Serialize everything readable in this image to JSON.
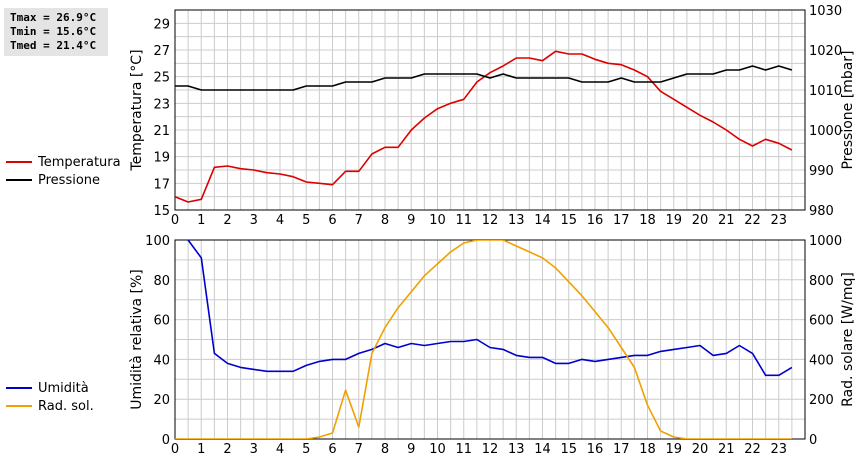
{
  "stats": {
    "tmax": "Tmax = 26.9°C",
    "tmin": "Tmin = 15.6°C",
    "tmed": "Tmed = 21.4°C"
  },
  "colors": {
    "temperature": "#dd0000",
    "pressure": "#000000",
    "humidity": "#0000cc",
    "radiation": "#f0a000",
    "grid": "#cccccc"
  },
  "chart_data": [
    {
      "type": "line",
      "x_ticks": [
        0,
        1,
        2,
        3,
        4,
        5,
        6,
        7,
        8,
        9,
        10,
        11,
        12,
        13,
        14,
        15,
        16,
        17,
        18,
        19,
        20,
        21,
        22,
        23
      ],
      "xlim": [
        0,
        24
      ],
      "y_left": {
        "label": "Temperatura [°C]",
        "lim": [
          15,
          30
        ],
        "ticks": [
          15,
          17,
          19,
          21,
          23,
          25,
          27,
          29
        ]
      },
      "y_right": {
        "label": "Pressione [mbar]",
        "lim": [
          980,
          1030
        ],
        "ticks": [
          980,
          990,
          1000,
          1010,
          1020,
          1030
        ]
      },
      "grid": true,
      "legend": {
        "placement": "left",
        "entries": [
          "Temperatura",
          "Pressione"
        ]
      },
      "series": [
        {
          "name": "Temperatura",
          "axis": "left",
          "color": "#dd0000",
          "x": [
            0,
            0.5,
            1,
            1.5,
            2,
            2.5,
            3,
            3.5,
            4,
            4.5,
            5,
            5.5,
            6,
            6.5,
            7,
            7.5,
            8,
            8.5,
            9,
            9.5,
            10,
            10.5,
            11,
            11.5,
            12,
            12.5,
            13,
            13.5,
            14,
            14.5,
            15,
            15.5,
            16,
            16.5,
            17,
            17.5,
            18,
            18.5,
            19,
            19.5,
            20,
            20.5,
            21,
            21.5,
            22,
            22.5,
            23,
            23.5
          ],
          "values": [
            16.0,
            15.6,
            15.8,
            18.2,
            18.3,
            18.1,
            18.0,
            17.8,
            17.7,
            17.5,
            17.1,
            17.0,
            16.9,
            17.9,
            17.9,
            19.2,
            19.7,
            19.7,
            21.0,
            21.9,
            22.6,
            23.0,
            23.3,
            24.6,
            25.3,
            25.8,
            26.4,
            26.4,
            26.2,
            26.9,
            26.7,
            26.7,
            26.3,
            26.0,
            25.9,
            25.5,
            25.0,
            23.9,
            23.3,
            22.7,
            22.1,
            21.6,
            21.0,
            20.3,
            19.8,
            20.3,
            20.0,
            19.5
          ]
        },
        {
          "name": "Pressione",
          "axis": "right",
          "color": "#000000",
          "x": [
            0,
            0.5,
            1,
            1.5,
            2,
            2.5,
            3,
            3.5,
            4,
            4.5,
            5,
            5.5,
            6,
            6.5,
            7,
            7.5,
            8,
            8.5,
            9,
            9.5,
            10,
            10.5,
            11,
            11.5,
            12,
            12.5,
            13,
            13.5,
            14,
            14.5,
            15,
            15.5,
            16,
            16.5,
            17,
            17.5,
            18,
            18.5,
            19,
            19.5,
            20,
            20.5,
            21,
            21.5,
            22,
            22.5,
            23,
            23.5
          ],
          "values": [
            1011,
            1011,
            1010,
            1010,
            1010,
            1010,
            1010,
            1010,
            1010,
            1010,
            1011,
            1011,
            1011,
            1012,
            1012,
            1012,
            1013,
            1013,
            1013,
            1014,
            1014,
            1014,
            1014,
            1014,
            1013,
            1014,
            1013,
            1013,
            1013,
            1013,
            1013,
            1012,
            1012,
            1012,
            1013,
            1012,
            1012,
            1012,
            1013,
            1014,
            1014,
            1014,
            1015,
            1015,
            1016,
            1015,
            1016,
            1015
          ]
        }
      ]
    },
    {
      "type": "line",
      "x_ticks": [
        0,
        1,
        2,
        3,
        4,
        5,
        6,
        7,
        8,
        9,
        10,
        11,
        12,
        13,
        14,
        15,
        16,
        17,
        18,
        19,
        20,
        21,
        22,
        23
      ],
      "xlim": [
        0,
        24
      ],
      "y_left": {
        "label": "Umidità relativa [%]",
        "lim": [
          0,
          100
        ],
        "ticks": [
          0,
          20,
          40,
          60,
          80,
          100
        ]
      },
      "y_right": {
        "label": "Rad. solare [W/mq]",
        "lim": [
          0,
          1000
        ],
        "ticks": [
          0,
          200,
          400,
          600,
          800,
          1000
        ]
      },
      "grid": true,
      "legend": {
        "placement": "left",
        "entries": [
          "Umidità",
          "Rad. sol."
        ]
      },
      "series": [
        {
          "name": "Umidità",
          "axis": "left",
          "color": "#0000cc",
          "x": [
            0.5,
            1,
            1.5,
            2,
            2.5,
            3,
            3.5,
            4,
            4.5,
            5,
            5.5,
            6,
            6.5,
            7,
            7.5,
            8,
            8.5,
            9,
            9.5,
            10,
            10.5,
            11,
            11.5,
            12,
            12.5,
            13,
            13.5,
            14,
            14.5,
            15,
            15.5,
            16,
            16.5,
            17,
            17.5,
            18,
            18.5,
            19,
            19.5,
            20,
            20.5,
            21,
            21.5,
            22,
            22.5,
            23,
            23.5
          ],
          "values": [
            100,
            91,
            43,
            38,
            36,
            35,
            34,
            34,
            34,
            37,
            39,
            40,
            40,
            43,
            45,
            48,
            46,
            48,
            47,
            48,
            49,
            49,
            50,
            46,
            45,
            42,
            41,
            41,
            38,
            38,
            40,
            39,
            40,
            41,
            42,
            42,
            44,
            45,
            46,
            47,
            42,
            43,
            47,
            43,
            32,
            32,
            36
          ]
        },
        {
          "name": "Rad. sol.",
          "axis": "right",
          "color": "#f0a000",
          "x": [
            0,
            0.5,
            1,
            1.5,
            2,
            2.5,
            3,
            3.5,
            4,
            4.5,
            5,
            5.5,
            6,
            6.5,
            7,
            7.5,
            8,
            8.5,
            9,
            9.5,
            10,
            10.5,
            11,
            11.5,
            12,
            12.5,
            13,
            13.5,
            14,
            14.5,
            15,
            15.5,
            16,
            16.5,
            17,
            17.5,
            18,
            18.5,
            19,
            19.5,
            20,
            20.5,
            21,
            21.5,
            22,
            22.5,
            23,
            23.5
          ],
          "values": [
            0,
            0,
            0,
            0,
            0,
            0,
            0,
            0,
            0,
            0,
            0,
            10,
            30,
            245,
            60,
            430,
            560,
            660,
            740,
            820,
            880,
            940,
            985,
            1000,
            1000,
            1000,
            970,
            940,
            910,
            860,
            790,
            720,
            640,
            560,
            460,
            360,
            170,
            40,
            10,
            0,
            0,
            0,
            0,
            0,
            0,
            0,
            0,
            0
          ]
        }
      ]
    }
  ]
}
